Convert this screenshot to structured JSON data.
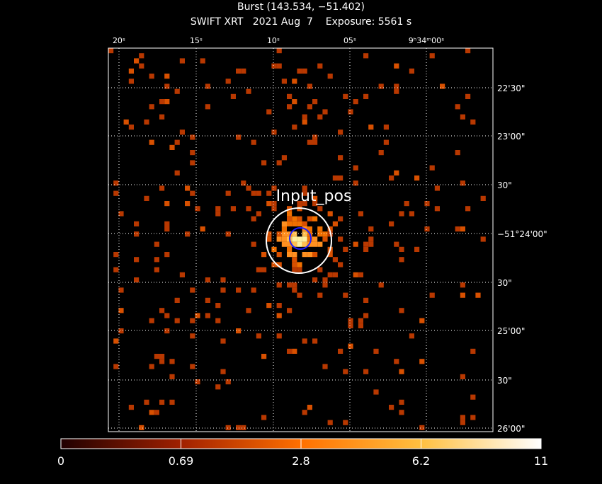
{
  "header": {
    "title": "Burst (143.534, −51.402)",
    "subtitle": "SWIFT XRT   2021 Aug  7    Exposure: 5561 s"
  },
  "image": {
    "ra_labels": [
      "20ˢ",
      "15ˢ",
      "10ˢ",
      "05ˢ",
      "9ʰ34ᵐ00ˢ"
    ],
    "dec_labels": [
      "22'30\"",
      "23'00\"",
      "30\"",
      "−51°24'00\"",
      "30\"",
      "25'00\"",
      "30\"",
      "26'00\""
    ],
    "annotation": "Input_pos"
  },
  "colorbar": {
    "labels": [
      0,
      0.69,
      2.8,
      6.2,
      11
    ]
  }
}
